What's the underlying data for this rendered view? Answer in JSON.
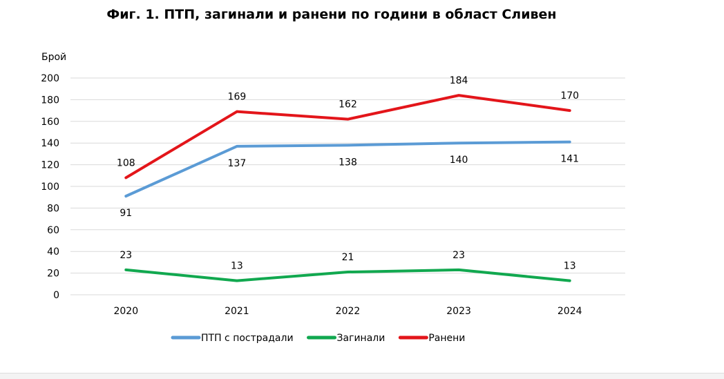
{
  "chart_data": {
    "type": "line",
    "title": "Фиг. 1. ПТП, загинали и ранени по години в област Сливен",
    "ylabel": "Брой",
    "xlabel": "",
    "categories": [
      "2020",
      "2021",
      "2022",
      "2023",
      "2024"
    ],
    "ylim": [
      0,
      200
    ],
    "yticks": [
      0,
      20,
      40,
      60,
      80,
      100,
      120,
      140,
      160,
      180,
      200
    ],
    "grid": true,
    "legend_position": "bottom",
    "series": [
      {
        "name": "ПТП с пострадали",
        "color": "#5b9bd5",
        "values": [
          91,
          137,
          138,
          140,
          141
        ],
        "label_position": "below"
      },
      {
        "name": "Загинали",
        "color": "#11a84f",
        "values": [
          23,
          13,
          21,
          23,
          13
        ],
        "label_position": "above"
      },
      {
        "name": "Ранени",
        "color": "#e3151a",
        "values": [
          108,
          169,
          162,
          184,
          170
        ],
        "label_position": "above"
      }
    ]
  }
}
